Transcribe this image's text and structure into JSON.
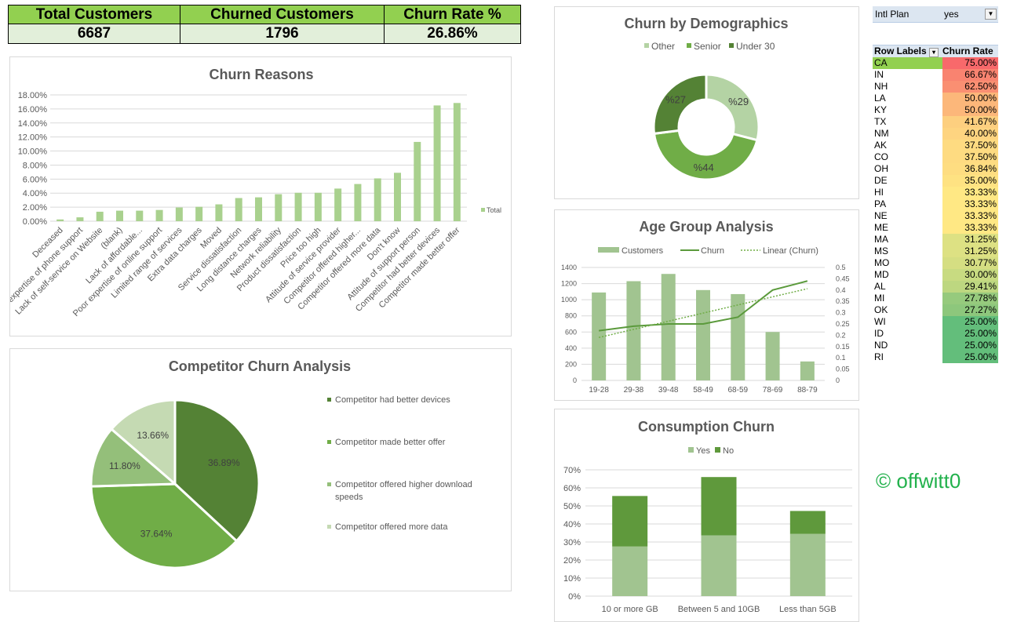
{
  "kpis": {
    "headers": [
      "Total Customers",
      "Churned Customers",
      "Churn Rate %"
    ],
    "values": [
      "6687",
      "1796",
      "26.86%"
    ],
    "header_color": "#92d050",
    "value_color": "#e2efda"
  },
  "pivot": {
    "filter_label": "Intl Plan",
    "filter_value": "yes",
    "col1": "Row Labels",
    "col2": "Churn Rate",
    "rows": [
      {
        "state": "CA",
        "rate": "75.00%",
        "color": "#f8696b"
      },
      {
        "state": "IN",
        "rate": "66.67%",
        "color": "#f98370"
      },
      {
        "state": "NH",
        "rate": "62.50%",
        "color": "#fa8f72"
      },
      {
        "state": "LA",
        "rate": "50.00%",
        "color": "#fcb77a"
      },
      {
        "state": "KY",
        "rate": "50.00%",
        "color": "#fcb77a"
      },
      {
        "state": "TX",
        "rate": "41.67%",
        "color": "#fdcf7f"
      },
      {
        "state": "NM",
        "rate": "40.00%",
        "color": "#fed480"
      },
      {
        "state": "AK",
        "rate": "37.50%",
        "color": "#fedb81"
      },
      {
        "state": "CO",
        "rate": "37.50%",
        "color": "#fedb81"
      },
      {
        "state": "OH",
        "rate": "36.84%",
        "color": "#fedd81"
      },
      {
        "state": "DE",
        "rate": "35.00%",
        "color": "#fee282"
      },
      {
        "state": "HI",
        "rate": "33.33%",
        "color": "#ffe884"
      },
      {
        "state": "PA",
        "rate": "33.33%",
        "color": "#ffe884"
      },
      {
        "state": "NE",
        "rate": "33.33%",
        "color": "#ffe884"
      },
      {
        "state": "ME",
        "rate": "33.33%",
        "color": "#ffe884"
      },
      {
        "state": "MA",
        "rate": "31.25%",
        "color": "#dde183"
      },
      {
        "state": "MS",
        "rate": "31.25%",
        "color": "#dde183"
      },
      {
        "state": "MO",
        "rate": "30.77%",
        "color": "#d5de82"
      },
      {
        "state": "MD",
        "rate": "30.00%",
        "color": "#c8db81"
      },
      {
        "state": "AL",
        "rate": "29.41%",
        "color": "#bdd780"
      },
      {
        "state": "MI",
        "rate": "27.78%",
        "color": "#96ca7d"
      },
      {
        "state": "OK",
        "rate": "27.27%",
        "color": "#8dc77c"
      },
      {
        "state": "WI",
        "rate": "25.00%",
        "color": "#63be7b"
      },
      {
        "state": "ID",
        "rate": "25.00%",
        "color": "#63be7b"
      },
      {
        "state": "ND",
        "rate": "25.00%",
        "color": "#63be7b"
      },
      {
        "state": "RI",
        "rate": "25.00%",
        "color": "#63be7b"
      }
    ],
    "selected_color": "#92d050"
  },
  "copyright": "© offwitt0",
  "chart_data": [
    {
      "id": "reasons",
      "type": "bar",
      "title": "Churn Reasons",
      "ylim": [
        0,
        18
      ],
      "yticks": [
        "0.00%",
        "2.00%",
        "4.00%",
        "6.00%",
        "8.00%",
        "10.00%",
        "12.00%",
        "14.00%",
        "16.00%",
        "18.00%"
      ],
      "legend": "right",
      "color": "#a9d18e",
      "grid": true,
      "categories": [
        "Deceased",
        "Poor expertise of phone support",
        "Lack of self-service on Website",
        "(blank)",
        "Lack of affordable...",
        "Poor expertise of online support",
        "Limited range of services",
        "Extra data charges",
        "Moved",
        "Service dissatisfaction",
        "Long distance charges",
        "Network reliability",
        "Product dissatisfaction",
        "Price too high",
        "Attitude of service provider",
        "Competitor offered higher...",
        "Competitor offered more data",
        "Don't know",
        "Attitude of support person",
        "Competitor had better devices",
        "Competitor made better offer"
      ],
      "series": [
        {
          "name": "Total",
          "values": [
            0.25,
            0.55,
            1.35,
            1.5,
            1.5,
            1.6,
            1.95,
            2.05,
            2.4,
            3.3,
            3.4,
            3.85,
            4.05,
            4.05,
            4.65,
            5.3,
            6.1,
            6.9,
            11.3,
            16.5,
            16.85
          ]
        }
      ]
    },
    {
      "id": "competitor",
      "type": "pie",
      "title": "Competitor Churn Analysis",
      "legend": "right",
      "categories": [
        "Competitor had better devices",
        "Competitor made better offer",
        "Competitor offered higher download speeds",
        "Competitor offered more data"
      ],
      "values": [
        36.89,
        37.64,
        11.8,
        13.66
      ],
      "labels": [
        "36.89%",
        "37.64%",
        "11.80%",
        "13.66%"
      ],
      "colors": [
        "#548235",
        "#70ad47",
        "#94bf7a",
        "#c5dab3"
      ]
    },
    {
      "id": "demographics",
      "type": "pie",
      "donut": true,
      "title": "Churn by Demographics",
      "legend": "top",
      "categories": [
        "Other",
        "Senior",
        "Under 30"
      ],
      "values": [
        29,
        44,
        27
      ],
      "labels": [
        "%29",
        "%44",
        "%27"
      ],
      "colors": [
        "#b4d3a4",
        "#70ad47",
        "#548235"
      ]
    },
    {
      "id": "age",
      "type": "bar",
      "title": "Age Group Analysis",
      "legend": "top",
      "grid": true,
      "categories": [
        "19-28",
        "29-38",
        "39-48",
        "58-49",
        "68-59",
        "78-69",
        "88-79"
      ],
      "ylim": [
        0,
        1400
      ],
      "yticks": [
        "0",
        "200",
        "400",
        "600",
        "800",
        "1000",
        "1200",
        "1400"
      ],
      "y2lim": [
        0,
        0.5
      ],
      "y2ticks": [
        "0",
        "0.05",
        "0.1",
        "0.15",
        "0.2",
        "0.25",
        "0.3",
        "0.35",
        "0.4",
        "0.45",
        "0.5"
      ],
      "series": [
        {
          "name": "Customers",
          "type": "bar",
          "axis": "left",
          "color": "#a1c490",
          "values": [
            1090,
            1230,
            1320,
            1120,
            1070,
            600,
            235
          ]
        },
        {
          "name": "Churn",
          "type": "line",
          "axis": "right",
          "color": "#5b9a3c",
          "values": [
            0.22,
            0.24,
            0.25,
            0.25,
            0.28,
            0.4,
            0.44
          ]
        },
        {
          "name": "Linear (Churn)",
          "type": "trendline",
          "axis": "right",
          "color": "#70ad47",
          "values": [
            0.19,
            0.226,
            0.262,
            0.298,
            0.334,
            0.37,
            0.406
          ]
        }
      ]
    },
    {
      "id": "consumption",
      "type": "stacked-bar",
      "title": "Consumption Churn",
      "legend": "top",
      "grid": true,
      "categories": [
        "10 or more GB",
        "Between 5 and 10GB",
        "Less than 5GB"
      ],
      "ylim": [
        0,
        70
      ],
      "yticks": [
        "0%",
        "10%",
        "20%",
        "30%",
        "40%",
        "50%",
        "60%",
        "70%"
      ],
      "series": [
        {
          "name": "Yes",
          "color": "#a1c490",
          "values": [
            27.5,
            33.7,
            34.5
          ]
        },
        {
          "name": "No",
          "color": "#5f993c",
          "values": [
            28.0,
            32.3,
            12.7
          ]
        }
      ]
    }
  ]
}
